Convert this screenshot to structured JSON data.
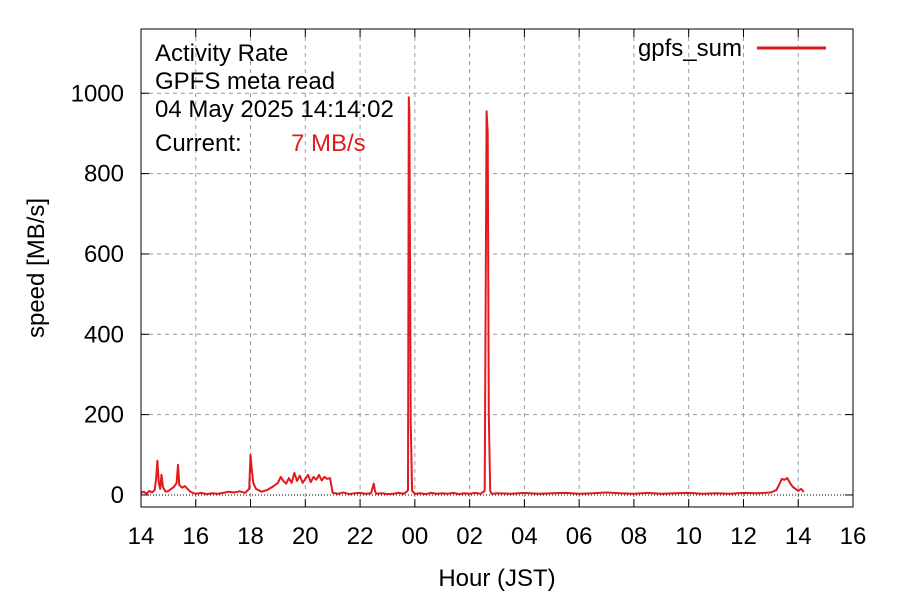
{
  "chart_data": {
    "type": "line",
    "info": {
      "line1": "Activity Rate",
      "line2": "GPFS meta read",
      "line3": "04 May 2025 14:14:02",
      "current_label": "Current:",
      "current_value": "7 MB/s"
    },
    "xlabel": "Hour (JST)",
    "ylabel": "speed [MB/s]",
    "x_unit": "hours elapsed since 14:00 JST on 03 May 2025",
    "xlim": [
      0,
      26
    ],
    "ylim": [
      -30,
      1160
    ],
    "x_ticks": [
      {
        "v": 0,
        "label": "14"
      },
      {
        "v": 2,
        "label": "16"
      },
      {
        "v": 4,
        "label": "18"
      },
      {
        "v": 6,
        "label": "20"
      },
      {
        "v": 8,
        "label": "22"
      },
      {
        "v": 10,
        "label": "00"
      },
      {
        "v": 12,
        "label": "02"
      },
      {
        "v": 14,
        "label": "04"
      },
      {
        "v": 16,
        "label": "06"
      },
      {
        "v": 18,
        "label": "08"
      },
      {
        "v": 20,
        "label": "10"
      },
      {
        "v": 22,
        "label": "12"
      },
      {
        "v": 24,
        "label": "14"
      },
      {
        "v": 26,
        "label": "16"
      }
    ],
    "y_ticks": [
      {
        "v": 0,
        "label": "0"
      },
      {
        "v": 200,
        "label": "200"
      },
      {
        "v": 400,
        "label": "400"
      },
      {
        "v": 600,
        "label": "600"
      },
      {
        "v": 800,
        "label": "800"
      },
      {
        "v": 1000,
        "label": "1000"
      }
    ],
    "grid": true,
    "legend_position": "top-right",
    "series": [
      {
        "name": "gpfs_sum",
        "color": "#e31a1c",
        "points": [
          [
            0.0,
            5
          ],
          [
            0.1,
            8
          ],
          [
            0.2,
            3
          ],
          [
            0.3,
            10
          ],
          [
            0.4,
            6
          ],
          [
            0.5,
            12
          ],
          [
            0.55,
            40
          ],
          [
            0.6,
            85
          ],
          [
            0.65,
            30
          ],
          [
            0.7,
            15
          ],
          [
            0.75,
            50
          ],
          [
            0.8,
            20
          ],
          [
            0.9,
            8
          ],
          [
            1.0,
            10
          ],
          [
            1.1,
            15
          ],
          [
            1.2,
            20
          ],
          [
            1.3,
            30
          ],
          [
            1.35,
            75
          ],
          [
            1.4,
            25
          ],
          [
            1.5,
            18
          ],
          [
            1.6,
            22
          ],
          [
            1.7,
            15
          ],
          [
            1.8,
            8
          ],
          [
            1.9,
            5
          ],
          [
            2.0,
            3
          ],
          [
            2.2,
            5
          ],
          [
            2.4,
            2
          ],
          [
            2.6,
            4
          ],
          [
            2.8,
            3
          ],
          [
            3.0,
            5
          ],
          [
            3.2,
            8
          ],
          [
            3.4,
            6
          ],
          [
            3.6,
            9
          ],
          [
            3.8,
            5
          ],
          [
            3.95,
            15
          ],
          [
            4.0,
            100
          ],
          [
            4.05,
            60
          ],
          [
            4.1,
            30
          ],
          [
            4.2,
            15
          ],
          [
            4.4,
            8
          ],
          [
            4.6,
            12
          ],
          [
            4.8,
            20
          ],
          [
            5.0,
            30
          ],
          [
            5.1,
            45
          ],
          [
            5.2,
            35
          ],
          [
            5.3,
            28
          ],
          [
            5.4,
            42
          ],
          [
            5.5,
            30
          ],
          [
            5.6,
            55
          ],
          [
            5.7,
            35
          ],
          [
            5.8,
            48
          ],
          [
            5.9,
            30
          ],
          [
            6.0,
            40
          ],
          [
            6.1,
            50
          ],
          [
            6.2,
            32
          ],
          [
            6.3,
            45
          ],
          [
            6.4,
            38
          ],
          [
            6.5,
            50
          ],
          [
            6.6,
            36
          ],
          [
            6.7,
            45
          ],
          [
            6.8,
            40
          ],
          [
            6.9,
            42
          ],
          [
            7.0,
            5
          ],
          [
            7.2,
            3
          ],
          [
            7.4,
            6
          ],
          [
            7.6,
            2
          ],
          [
            7.8,
            4
          ],
          [
            8.0,
            5
          ],
          [
            8.2,
            3
          ],
          [
            8.4,
            4
          ],
          [
            8.5,
            28
          ],
          [
            8.55,
            8
          ],
          [
            8.6,
            3
          ],
          [
            8.8,
            4
          ],
          [
            9.0,
            2
          ],
          [
            9.2,
            3
          ],
          [
            9.4,
            5
          ],
          [
            9.6,
            3
          ],
          [
            9.7,
            8
          ],
          [
            9.75,
            12
          ],
          [
            9.78,
            990
          ],
          [
            9.8,
            950
          ],
          [
            9.85,
            180
          ],
          [
            9.9,
            10
          ],
          [
            10.0,
            3
          ],
          [
            10.2,
            4
          ],
          [
            10.4,
            2
          ],
          [
            10.6,
            5
          ],
          [
            10.8,
            3
          ],
          [
            11.0,
            4
          ],
          [
            11.2,
            3
          ],
          [
            11.4,
            5
          ],
          [
            11.6,
            2
          ],
          [
            11.8,
            4
          ],
          [
            12.0,
            3
          ],
          [
            12.2,
            5
          ],
          [
            12.4,
            3
          ],
          [
            12.55,
            10
          ],
          [
            12.62,
            955
          ],
          [
            12.66,
            900
          ],
          [
            12.7,
            200
          ],
          [
            12.75,
            10
          ],
          [
            12.8,
            3
          ],
          [
            13.0,
            4
          ],
          [
            13.5,
            3
          ],
          [
            14.0,
            5
          ],
          [
            14.5,
            3
          ],
          [
            15.0,
            4
          ],
          [
            15.5,
            5
          ],
          [
            16.0,
            3
          ],
          [
            16.5,
            4
          ],
          [
            17.0,
            6
          ],
          [
            17.5,
            4
          ],
          [
            18.0,
            3
          ],
          [
            18.5,
            5
          ],
          [
            19.0,
            3
          ],
          [
            19.5,
            4
          ],
          [
            20.0,
            5
          ],
          [
            20.5,
            3
          ],
          [
            21.0,
            4
          ],
          [
            21.5,
            3
          ],
          [
            22.0,
            5
          ],
          [
            22.5,
            4
          ],
          [
            23.0,
            6
          ],
          [
            23.2,
            12
          ],
          [
            23.3,
            25
          ],
          [
            23.4,
            40
          ],
          [
            23.5,
            38
          ],
          [
            23.6,
            42
          ],
          [
            23.7,
            30
          ],
          [
            23.8,
            20
          ],
          [
            23.9,
            15
          ],
          [
            24.0,
            10
          ],
          [
            24.1,
            15
          ],
          [
            24.15,
            12
          ],
          [
            24.2,
            7
          ]
        ]
      }
    ]
  }
}
